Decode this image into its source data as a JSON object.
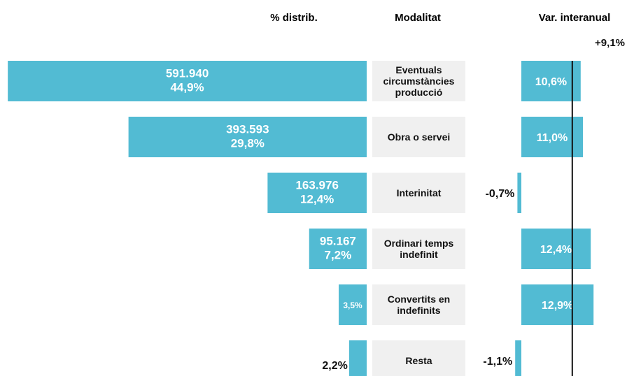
{
  "chart_data": [
    {
      "type": "bar",
      "orientation": "horizontal-reversed",
      "title": "% distrib.",
      "y_label": "Modalitat",
      "categories": [
        "Eventuals\ncircumstàncies\nproducció",
        "Obra o servei",
        "Interinitat",
        "Ordinari temps\nindefinit",
        "Convertits en\nindefinits",
        "Resta"
      ],
      "values": [
        44.9,
        29.8,
        12.4,
        7.2,
        3.5,
        2.2
      ],
      "value_labels": [
        "44,9%",
        "29,8%",
        "12,4%",
        "7,2%",
        "3,5%",
        "2,2%"
      ],
      "counts": [
        591940,
        393593,
        163976,
        95167,
        null,
        null
      ],
      "count_labels": [
        "591.940",
        "393.593",
        "163.976",
        "95.167",
        null,
        null
      ],
      "xlim": [
        0,
        45
      ],
      "color": "#52bbd3"
    },
    {
      "type": "bar",
      "orientation": "horizontal",
      "title": "Var. interanual",
      "values": [
        10.6,
        11.0,
        -0.7,
        12.4,
        12.9,
        -1.1
      ],
      "value_labels": [
        "10,6%",
        "11,0%",
        "-0,7%",
        "12,4%",
        "12,9%",
        "-1,1%"
      ],
      "reference": {
        "value": 9.1,
        "label": "+9,1%"
      },
      "xlim": [
        -5,
        15
      ],
      "color": "#52bbd3"
    }
  ]
}
